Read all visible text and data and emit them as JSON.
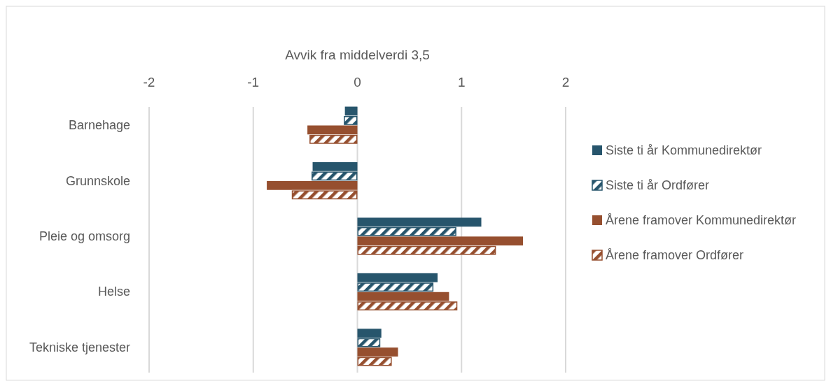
{
  "chart_data": {
    "type": "bar",
    "orientation": "horizontal",
    "xlabel": "Avvik fra middelverdi 3,5",
    "categories": [
      "Barnehage",
      "Grunnskole",
      "Pleie og omsorg",
      "Helse",
      "Tekniske tjenester"
    ],
    "series": [
      {
        "name": "Siste ti år Kommunedirektør",
        "color": "#27556c",
        "values": [
          -0.12,
          -0.43,
          1.19,
          0.77,
          0.23
        ]
      },
      {
        "name": "Siste ti år Ordfører",
        "color": "#27556c",
        "values": [
          -0.13,
          -0.44,
          0.95,
          0.73,
          0.22
        ]
      },
      {
        "name": "Årene framover Kommunedirektør",
        "color": "#964f2f",
        "values": [
          -0.48,
          -0.87,
          1.59,
          0.88,
          0.39
        ]
      },
      {
        "name": "Årene framover Ordfører",
        "color": "#964f2f",
        "values": [
          -0.46,
          -0.63,
          1.33,
          0.96,
          0.33
        ]
      }
    ],
    "xlim": [
      -2,
      2
    ],
    "xticks": [
      -2,
      -1,
      0,
      1,
      2
    ],
    "grid": "x",
    "legend": "right"
  }
}
